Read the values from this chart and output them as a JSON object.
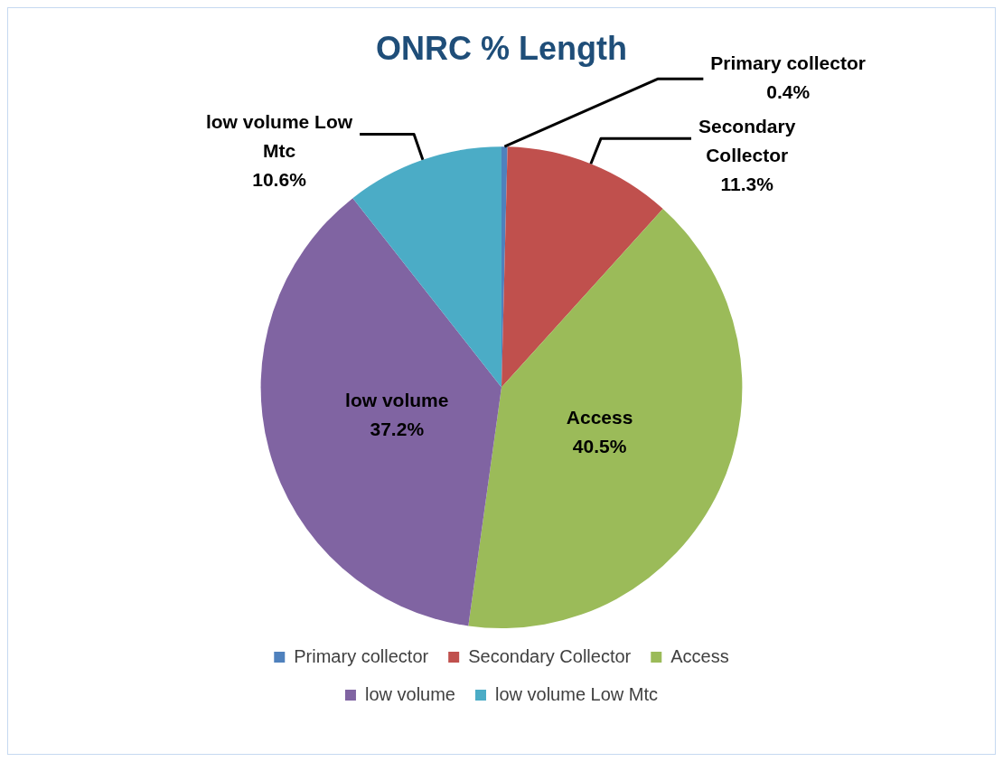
{
  "chart_data": {
    "type": "pie",
    "title": "ONRC % Length",
    "categories": [
      "Primary collector",
      "Secondary Collector",
      "Access",
      "low volume",
      "low volume Low Mtc"
    ],
    "values": [
      0.4,
      11.3,
      40.5,
      37.2,
      10.6
    ],
    "value_labels": [
      "0.4%",
      "11.3%",
      "40.5%",
      "37.2%",
      "10.6%"
    ],
    "colors": [
      "#4f81bd",
      "#c0504d",
      "#9bbb59",
      "#8064a2",
      "#4bacc6"
    ],
    "legend": "bottom"
  }
}
